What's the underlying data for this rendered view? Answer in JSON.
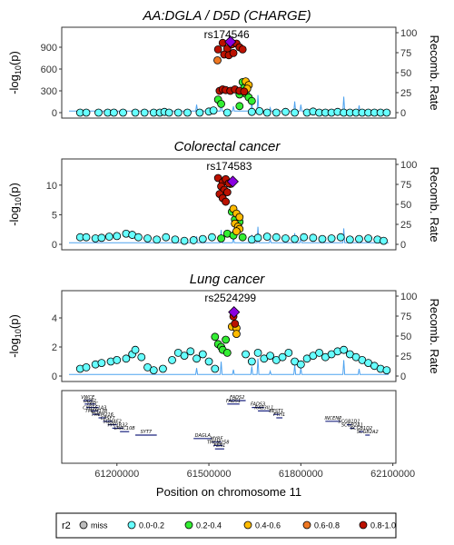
{
  "chart_data": [
    {
      "type": "scatter",
      "title": "AA:DGLA / D5D (CHARGE)",
      "ylabel": "-log10(p)",
      "y2label": "Recomb. Rate",
      "ylim": [
        0,
        1100
      ],
      "yticks": [
        "0",
        "300",
        "600",
        "900"
      ],
      "y2lim": [
        0,
        100
      ],
      "y2ticks": [
        "0",
        "25",
        "50",
        "75",
        "100"
      ],
      "xlim": [
        61020000,
        62110000
      ],
      "lead_snp": {
        "label": "rs174546",
        "x": 61570000,
        "y": 975
      },
      "series": [
        {
          "r2": "0.8-1.0",
          "points": [
            [
              61545000,
              960
            ],
            [
              61560000,
              880
            ],
            [
              61575000,
              940
            ],
            [
              61590000,
              950
            ],
            [
              61600000,
              900
            ],
            [
              61610000,
              870
            ],
            [
              61530000,
              870
            ],
            [
              61550000,
              800
            ],
            [
              61565000,
              790
            ],
            [
              61580000,
              820
            ],
            [
              61535000,
              300
            ],
            [
              61545000,
              320
            ],
            [
              61555000,
              310
            ],
            [
              61570000,
              300
            ],
            [
              61585000,
              320
            ],
            [
              61600000,
              300
            ],
            [
              61615000,
              290
            ]
          ]
        },
        {
          "r2": "0.6-0.8",
          "points": [
            [
              61528000,
              720
            ]
          ]
        },
        {
          "r2": "0.4-0.6",
          "points": [
            [
              61620000,
              430
            ],
            [
              61630000,
              380
            ],
            [
              61625000,
              330
            ]
          ]
        },
        {
          "r2": "0.2-0.4",
          "points": [
            [
              61610000,
              420
            ],
            [
              61615000,
              340
            ],
            [
              61600000,
              250
            ],
            [
              61620000,
              260
            ],
            [
              61630000,
              210
            ],
            [
              61640000,
              160
            ],
            [
              61530000,
              180
            ],
            [
              61540000,
              120
            ],
            [
              61600000,
              90
            ]
          ]
        },
        {
          "r2": "0.0-0.2",
          "points": [
            [
              61080000,
              0
            ],
            [
              61100000,
              0
            ],
            [
              61140000,
              0
            ],
            [
              61170000,
              0
            ],
            [
              61190000,
              0
            ],
            [
              61220000,
              0
            ],
            [
              61260000,
              0
            ],
            [
              61290000,
              0
            ],
            [
              61320000,
              0
            ],
            [
              61340000,
              0
            ],
            [
              61355000,
              10
            ],
            [
              61370000,
              0
            ],
            [
              61400000,
              0
            ],
            [
              61430000,
              0
            ],
            [
              61470000,
              0
            ],
            [
              61500000,
              15
            ],
            [
              61515000,
              30
            ],
            [
              61560000,
              0
            ],
            [
              61640000,
              10
            ],
            [
              61665000,
              20
            ],
            [
              61690000,
              0
            ],
            [
              61720000,
              0
            ],
            [
              61750000,
              10
            ],
            [
              61780000,
              0
            ],
            [
              61820000,
              0
            ],
            [
              61840000,
              15
            ],
            [
              61860000,
              0
            ],
            [
              61880000,
              0
            ],
            [
              61900000,
              0
            ],
            [
              61920000,
              10
            ],
            [
              61940000,
              0
            ],
            [
              61960000,
              0
            ],
            [
              61980000,
              0
            ],
            [
              62000000,
              0
            ],
            [
              62020000,
              0
            ],
            [
              62040000,
              0
            ],
            [
              62060000,
              0
            ],
            [
              62080000,
              0
            ]
          ]
        }
      ]
    },
    {
      "type": "scatter",
      "title": "Colorectal cancer",
      "ylabel": "-log10(p)",
      "y2label": "Recomb. Rate",
      "ylim": [
        0,
        13.5
      ],
      "yticks": [
        "0",
        "5",
        "10"
      ],
      "y2lim": [
        0,
        100
      ],
      "y2ticks": [
        "0",
        "25",
        "50",
        "75",
        "100"
      ],
      "xlim": [
        61020000,
        62110000
      ],
      "lead_snp": {
        "label": "rs174583",
        "x": 61578000,
        "y": 10.6
      },
      "series": [
        {
          "r2": "0.8-1.0",
          "points": [
            [
              61530000,
              11.2
            ],
            [
              61545000,
              10.5
            ],
            [
              61555000,
              11.0
            ],
            [
              61540000,
              9.8
            ],
            [
              61550000,
              9.2
            ],
            [
              61560000,
              8.8
            ],
            [
              61565000,
              10.3
            ],
            [
              61535000,
              8.5
            ],
            [
              61545000,
              7.8
            ],
            [
              61555000,
              7.2
            ]
          ]
        },
        {
          "r2": "0.6-0.8",
          "points": [
            [
              61570000,
              10.2
            ]
          ]
        },
        {
          "r2": "0.4-0.6",
          "points": [
            [
              61580000,
              6.0
            ],
            [
              61590000,
              5.2
            ],
            [
              61600000,
              4.6
            ],
            [
              61585000,
              3.5
            ],
            [
              61595000,
              3.0
            ],
            [
              61600000,
              2.6
            ],
            [
              61590000,
              2.2
            ]
          ]
        },
        {
          "r2": "0.2-0.4",
          "points": [
            [
              61575000,
              5.5
            ],
            [
              61585000,
              4.2
            ],
            [
              61600000,
              3.8
            ],
            [
              61560000,
              1.8
            ],
            [
              61580000,
              1.5
            ],
            [
              61610000,
              1.2
            ],
            [
              61540000,
              1.0
            ]
          ]
        },
        {
          "r2": "0.0-0.2",
          "points": [
            [
              61080000,
              1.2
            ],
            [
              61100000,
              1.2
            ],
            [
              61130000,
              1.0
            ],
            [
              61150000,
              1.1
            ],
            [
              61175000,
              1.3
            ],
            [
              61200000,
              1.4
            ],
            [
              61230000,
              1.8
            ],
            [
              61250000,
              1.6
            ],
            [
              61270000,
              1.2
            ],
            [
              61300000,
              1.0
            ],
            [
              61330000,
              0.8
            ],
            [
              61360000,
              1.2
            ],
            [
              61390000,
              0.8
            ],
            [
              61420000,
              0.6
            ],
            [
              61450000,
              0.7
            ],
            [
              61480000,
              0.9
            ],
            [
              61510000,
              1.2
            ],
            [
              61640000,
              0.8
            ],
            [
              61660000,
              1.1
            ],
            [
              61690000,
              1.3
            ],
            [
              61720000,
              1.2
            ],
            [
              61750000,
              1.0
            ],
            [
              61780000,
              0.9
            ],
            [
              61810000,
              1.2
            ],
            [
              61840000,
              1.1
            ],
            [
              61870000,
              0.9
            ],
            [
              61900000,
              1.0
            ],
            [
              61930000,
              1.2
            ],
            [
              61960000,
              0.8
            ],
            [
              61990000,
              0.9
            ],
            [
              62020000,
              1.0
            ],
            [
              62050000,
              0.8
            ],
            [
              62070000,
              0.6
            ]
          ]
        }
      ]
    },
    {
      "type": "scatter",
      "title": "Lung cancer",
      "ylabel": "-log10(p)",
      "y2label": "Recomb. Rate",
      "ylim": [
        0,
        5.5
      ],
      "yticks": [
        "0",
        "2",
        "4"
      ],
      "y2lim": [
        0,
        100
      ],
      "y2ticks": [
        "0",
        "25",
        "50",
        "75",
        "100"
      ],
      "xlim": [
        61020000,
        62110000
      ],
      "lead_snp": {
        "label": "rs2524299",
        "x": 61582000,
        "y": 4.4
      },
      "series": [
        {
          "r2": "0.8-1.0",
          "points": [
            [
              61580000,
              4.1
            ],
            [
              61585000,
              3.6
            ]
          ]
        },
        {
          "r2": "0.4-0.6",
          "points": [
            [
              61575000,
              3.4
            ],
            [
              61590000,
              3.3
            ],
            [
              61590000,
              2.9
            ]
          ]
        },
        {
          "r2": "0.2-0.4",
          "points": [
            [
              61520000,
              2.7
            ],
            [
              61530000,
              2.2
            ],
            [
              61540000,
              2.0
            ],
            [
              61545000,
              1.8
            ],
            [
              61555000,
              2.5
            ],
            [
              61560000,
              1.6
            ]
          ]
        },
        {
          "r2": "0.0-0.2",
          "points": [
            [
              61080000,
              0.5
            ],
            [
              61100000,
              0.6
            ],
            [
              61130000,
              0.8
            ],
            [
              61150000,
              0.9
            ],
            [
              61180000,
              1.0
            ],
            [
              61200000,
              1.1
            ],
            [
              61230000,
              1.2
            ],
            [
              61250000,
              1.5
            ],
            [
              61260000,
              1.8
            ],
            [
              61280000,
              1.3
            ],
            [
              61300000,
              0.6
            ],
            [
              61320000,
              0.4
            ],
            [
              61350000,
              0.5
            ],
            [
              61380000,
              1.1
            ],
            [
              61400000,
              1.6
            ],
            [
              61420000,
              1.4
            ],
            [
              61440000,
              1.7
            ],
            [
              61460000,
              1.2
            ],
            [
              61480000,
              1.5
            ],
            [
              61500000,
              1.0
            ],
            [
              61520000,
              0.5
            ],
            [
              61620000,
              1.5
            ],
            [
              61640000,
              1.0
            ],
            [
              61660000,
              1.6
            ],
            [
              61680000,
              1.2
            ],
            [
              61700000,
              1.4
            ],
            [
              61720000,
              1.1
            ],
            [
              61740000,
              1.3
            ],
            [
              61760000,
              1.6
            ],
            [
              61780000,
              1.0
            ],
            [
              61800000,
              0.8
            ],
            [
              61820000,
              1.2
            ],
            [
              61840000,
              1.4
            ],
            [
              61860000,
              1.6
            ],
            [
              61880000,
              1.3
            ],
            [
              61900000,
              1.5
            ],
            [
              61920000,
              1.7
            ],
            [
              61940000,
              1.8
            ],
            [
              61960000,
              1.5
            ],
            [
              61980000,
              1.3
            ],
            [
              62000000,
              1.1
            ],
            [
              62020000,
              0.9
            ],
            [
              62040000,
              0.7
            ],
            [
              62060000,
              0.5
            ],
            [
              62080000,
              0.4
            ]
          ]
        }
      ]
    }
  ],
  "genes": {
    "xlabel": "Position on chromosome 11",
    "xticks": [
      {
        "label": "61200000",
        "x": 61200000
      },
      {
        "label": "61500000",
        "x": 61500000
      },
      {
        "label": "61800000",
        "x": 61800000
      },
      {
        "label": "62100000",
        "x": 62100000
      }
    ],
    "items": [
      {
        "name": "VWCE",
        "start": 61090000,
        "end": 61120000,
        "row": 0
      },
      {
        "name": "DDB1",
        "start": 61095000,
        "end": 61130000,
        "row": 1
      },
      {
        "name": "TKFC",
        "start": 61100000,
        "end": 61140000,
        "row": 2
      },
      {
        "name": "CYB561A3",
        "start": 61115000,
        "end": 61140000,
        "row": 3
      },
      {
        "name": "TMEM138",
        "start": 61120000,
        "end": 61145000,
        "row": 4
      },
      {
        "name": "TMEM216",
        "start": 61140000,
        "end": 61165000,
        "row": 5
      },
      {
        "name": "CPSF7",
        "start": 61155000,
        "end": 61185000,
        "row": 6
      },
      {
        "name": "SDHAF2",
        "start": 61170000,
        "end": 61200000,
        "row": 7
      },
      {
        "name": "PPP1R32",
        "start": 61185000,
        "end": 61220000,
        "row": 8
      },
      {
        "name": "LRRC10B",
        "start": 61210000,
        "end": 61240000,
        "row": 9
      },
      {
        "name": "SYT7",
        "start": 61260000,
        "end": 61330000,
        "row": 10
      },
      {
        "name": "DAGLA",
        "start": 61450000,
        "end": 61510000,
        "row": 11
      },
      {
        "name": "MYRF",
        "start": 61510000,
        "end": 61540000,
        "row": 12
      },
      {
        "name": "TMEM258",
        "start": 61515000,
        "end": 61545000,
        "row": 13
      },
      {
        "name": "FEN1",
        "start": 61520000,
        "end": 61550000,
        "row": 14
      },
      {
        "name": "FADS2",
        "start": 61565000,
        "end": 61620000,
        "row": 0
      },
      {
        "name": "FADS1",
        "start": 61560000,
        "end": 61600000,
        "row": 1
      },
      {
        "name": "FADS3",
        "start": 61640000,
        "end": 61680000,
        "row": 2
      },
      {
        "name": "RAB3IL1",
        "start": 61660000,
        "end": 61700000,
        "row": 3
      },
      {
        "name": "BEST1",
        "start": 61710000,
        "end": 61730000,
        "row": 4
      },
      {
        "name": "FTH1",
        "start": 61720000,
        "end": 61740000,
        "row": 5
      },
      {
        "name": "INCENP",
        "start": 61880000,
        "end": 61930000,
        "row": 6
      },
      {
        "name": "SCGB1D1",
        "start": 61950000,
        "end": 61965000,
        "row": 7
      },
      {
        "name": "SCGB2A1",
        "start": 61960000,
        "end": 61975000,
        "row": 8
      },
      {
        "name": "SCGB1D2",
        "start": 61990000,
        "end": 62005000,
        "row": 9
      },
      {
        "name": "SCGB2A2",
        "start": 62010000,
        "end": 62025000,
        "row": 10
      }
    ]
  },
  "legend": {
    "title": "r2",
    "items": [
      {
        "label": "miss",
        "color": "#bdbdbd"
      },
      {
        "label": "0.0-0.2",
        "color": "#66ffff"
      },
      {
        "label": "0.2-0.4",
        "color": "#33ee33"
      },
      {
        "label": "0.4-0.6",
        "color": "#ffbb00"
      },
      {
        "label": "0.6-0.8",
        "color": "#ee7722"
      },
      {
        "label": "0.8-1.0",
        "color": "#bb1100"
      }
    ]
  },
  "colors": {
    "lead": "#8a00e0",
    "recomb_line": "#4fa3ef",
    "gene": "#1a237e"
  }
}
